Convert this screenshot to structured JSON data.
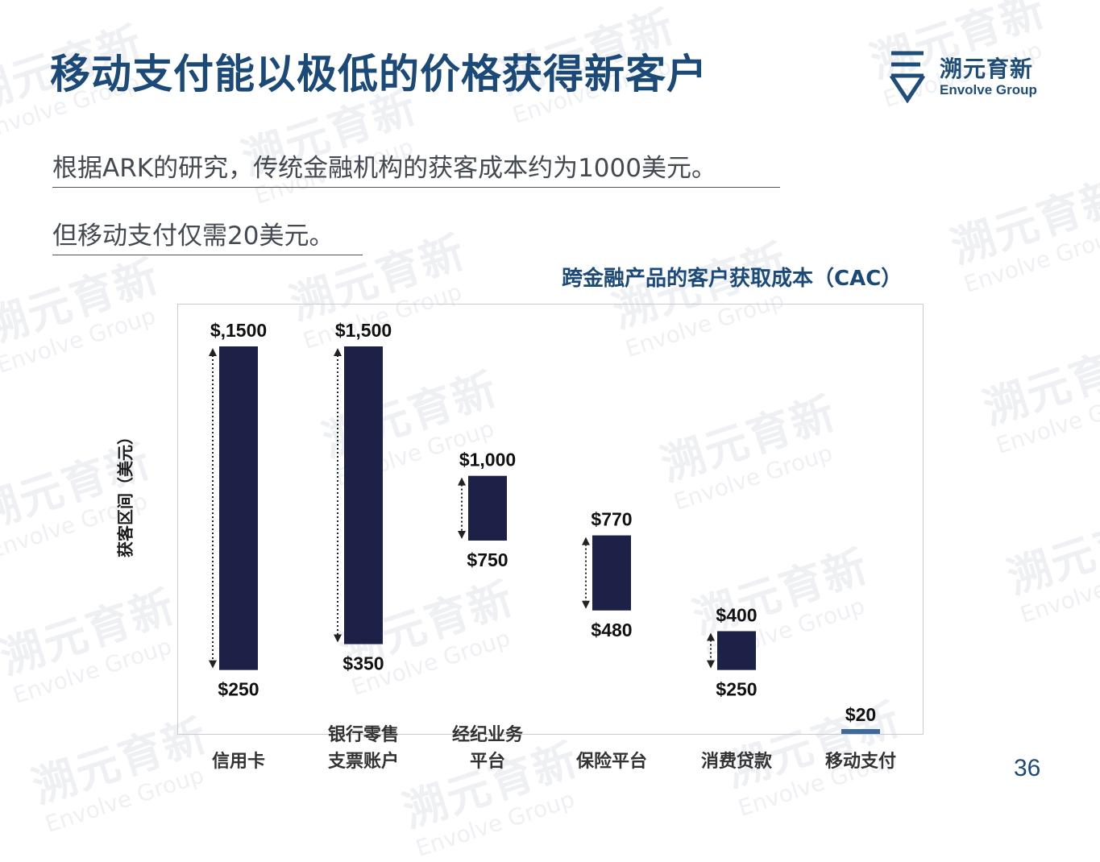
{
  "page_title": "移动支付能以极低的价格获得新客户",
  "brand": {
    "name_cn": "溯元育新",
    "name_en": "Envolve Group",
    "color": "#1f4d7a"
  },
  "statements": [
    "根据ARK的研究，传统金融机构的获客成本约为1000美元。",
    "但移动支付仅需20美元。"
  ],
  "page_number": "36",
  "colors": {
    "title": "#1c4a78",
    "bar": "#1e2147",
    "mobile_bar": "#3d6a9a"
  },
  "chart_data": {
    "type": "bar",
    "title": "跨金融产品的客户获取成本（CAC）",
    "ylabel": "获客区间（美元）",
    "xlabel": "",
    "ylim": [
      0,
      1600
    ],
    "grid": false,
    "categories": [
      [
        "信用卡"
      ],
      [
        "银行零售",
        "支票账户"
      ],
      [
        "经纪业务",
        "平台"
      ],
      [
        "保险平台"
      ],
      [
        "消费贷款"
      ],
      [
        "移动支付"
      ]
    ],
    "ranges": [
      {
        "low": 250,
        "high": 1500,
        "low_label": "$250",
        "high_label": "$,1500"
      },
      {
        "low": 350,
        "high": 1500,
        "low_label": "$350",
        "high_label": "$1,500"
      },
      {
        "low": 750,
        "high": 1000,
        "low_label": "$750",
        "high_label": "$1,000"
      },
      {
        "low": 480,
        "high": 770,
        "low_label": "$480",
        "high_label": "$770"
      },
      {
        "low": 250,
        "high": 400,
        "low_label": "$250",
        "high_label": "$400"
      },
      {
        "low": 20,
        "high": 20,
        "low_label": "",
        "high_label": "$20"
      }
    ]
  }
}
